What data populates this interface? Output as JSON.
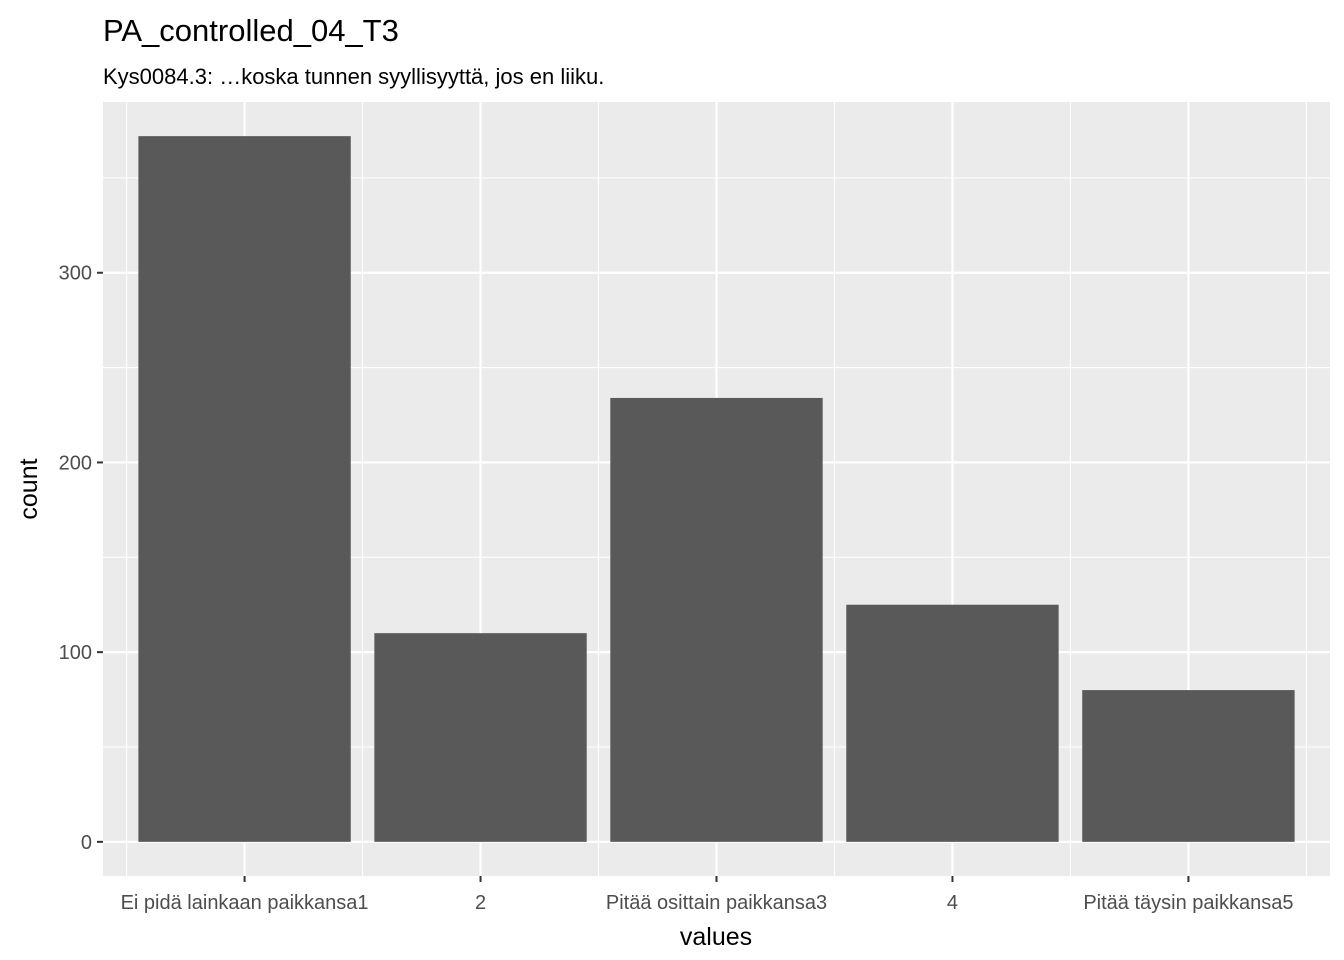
{
  "chart_data": {
    "type": "bar",
    "title": "PA_controlled_04_T3",
    "subtitle": "Kys0084.3: …koska tunnen syyllisyyttä, jos en liiku.",
    "xlabel": "values",
    "ylabel": "count",
    "categories": [
      "Ei pidä lainkaan paikkansa1",
      "2",
      "Pitää osittain paikkansa3",
      "4",
      "Pitää täysin paikkansa5"
    ],
    "values": [
      372,
      110,
      234,
      125,
      80
    ],
    "ylim": [
      -18,
      390
    ],
    "yticks": [
      0,
      100,
      200,
      300
    ],
    "grid": true,
    "legend": "none",
    "colors": {
      "bar": "#595959",
      "panel": "#ebebeb",
      "grid": "#ffffff"
    }
  }
}
